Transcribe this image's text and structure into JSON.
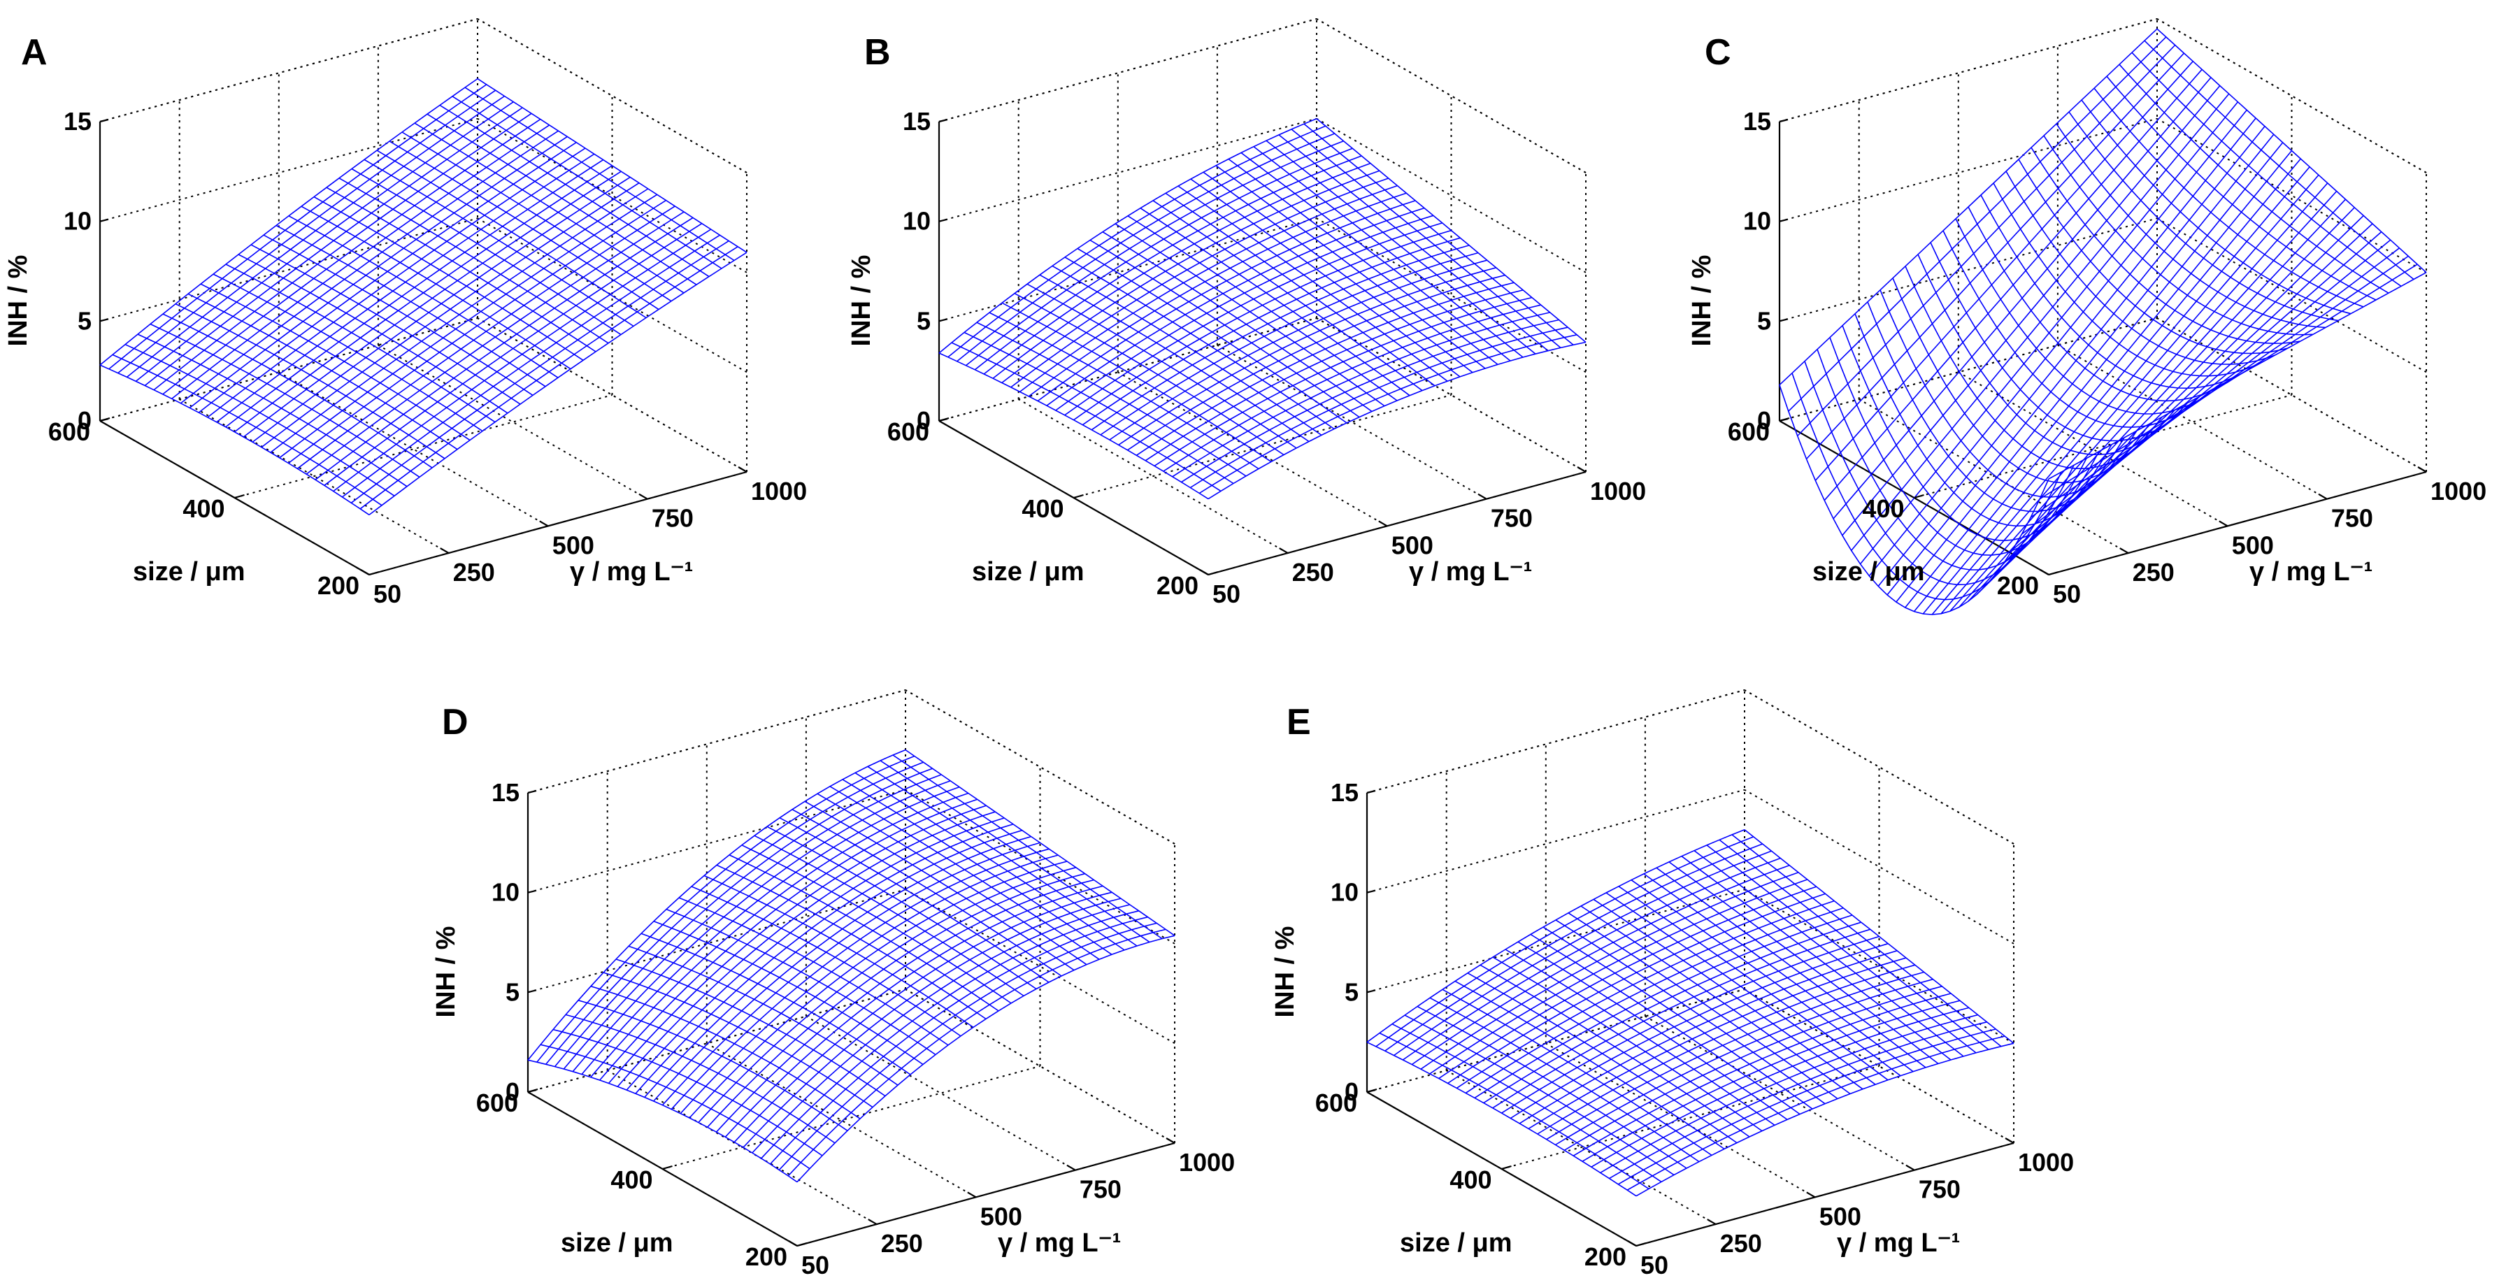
{
  "figure": {
    "background": "#ffffff",
    "mesh_color": "#0000ff"
  },
  "chart_data": [
    {
      "type": "surface",
      "panel": "A",
      "xlabel": "γ / mg L⁻¹",
      "ylabel": "size / μm",
      "zlabel": "INH / %",
      "x_ticks": [
        50,
        250,
        500,
        750,
        1000
      ],
      "x_tick_labels": [
        "50",
        "250",
        "500",
        "750",
        "1000"
      ],
      "y_ticks": [
        200,
        400,
        600
      ],
      "y_tick_labels": [
        "200",
        "400",
        "600"
      ],
      "z_ticks": [
        0,
        5,
        10,
        15
      ],
      "z_tick_labels": [
        "0",
        "5",
        "10",
        "15"
      ],
      "xlim": [
        50,
        1000
      ],
      "ylim": [
        200,
        600
      ],
      "zlim": [
        0,
        15
      ],
      "grid": true,
      "corner_values": {
        "x50_y200": 3.0,
        "x50_y600": 2.8,
        "x1000_y200": 11.0,
        "x1000_y600": 12.0
      },
      "surface_function": {
        "z00": 3.0,
        "z10": 11.0,
        "z01": 2.8,
        "z11": 12.0,
        "cx": 0.3,
        "cy": 0.4
      }
    },
    {
      "type": "surface",
      "panel": "B",
      "xlabel": "γ / mg L⁻¹",
      "ylabel": "size / μm",
      "zlabel": "INH / %",
      "x_ticks": [
        50,
        250,
        500,
        750,
        1000
      ],
      "x_tick_labels": [
        "50",
        "250",
        "500",
        "750",
        "1000"
      ],
      "y_ticks": [
        200,
        400,
        600
      ],
      "y_tick_labels": [
        "200",
        "400",
        "600"
      ],
      "z_ticks": [
        0,
        5,
        10,
        15
      ],
      "z_tick_labels": [
        "0",
        "5",
        "10",
        "15"
      ],
      "xlim": [
        50,
        1000
      ],
      "ylim": [
        200,
        600
      ],
      "zlim": [
        0,
        15
      ],
      "grid": true,
      "corner_values": {
        "x50_y200": 3.8,
        "x50_y600": 3.4,
        "x1000_y200": 6.5,
        "x1000_y600": 10.0
      },
      "surface_function": {
        "z00": 3.8,
        "z10": 6.5,
        "z01": 3.4,
        "z11": 10.0,
        "cx": 1.0,
        "cy": 0.3
      }
    },
    {
      "type": "surface",
      "panel": "C",
      "xlabel": "γ / mg L⁻¹",
      "ylabel": "size / μm",
      "zlabel": "INH / %",
      "x_ticks": [
        50,
        250,
        500,
        750,
        1000
      ],
      "x_tick_labels": [
        "50",
        "250",
        "500",
        "750",
        "1000"
      ],
      "y_ticks": [
        200,
        400,
        600
      ],
      "y_tick_labels": [
        "200",
        "400",
        "600"
      ],
      "z_ticks": [
        0,
        5,
        10,
        15
      ],
      "z_tick_labels": [
        "0",
        "5",
        "10",
        "15"
      ],
      "xlim": [
        50,
        1000
      ],
      "ylim": [
        200,
        600
      ],
      "zlim": [
        0,
        15
      ],
      "grid": true,
      "corner_values": {
        "x50_y200": 4.8,
        "x50_y600": 1.8,
        "x1000_y200": 10.0,
        "x1000_y600": 14.5
      },
      "surface_function": {
        "z00": 4.8,
        "z10": 10.0,
        "z01": 1.8,
        "z11": 14.5,
        "cx": 0.0,
        "cy": -9.0
      }
    },
    {
      "type": "surface",
      "panel": "D",
      "xlabel": "γ / mg L⁻¹",
      "ylabel": "size / μm",
      "zlabel": "INH / %",
      "x_ticks": [
        50,
        250,
        500,
        750,
        1000
      ],
      "x_tick_labels": [
        "50",
        "250",
        "500",
        "750",
        "1000"
      ],
      "y_ticks": [
        200,
        400,
        600
      ],
      "y_tick_labels": [
        "200",
        "400",
        "600"
      ],
      "z_ticks": [
        0,
        5,
        10,
        15
      ],
      "z_tick_labels": [
        "0",
        "5",
        "10",
        "15"
      ],
      "xlim": [
        50,
        1000
      ],
      "ylim": [
        200,
        600
      ],
      "zlim": [
        0,
        15
      ],
      "grid": true,
      "corner_values": {
        "x50_y200": 3.2,
        "x50_y600": 1.6,
        "x1000_y200": 10.4,
        "x1000_y600": 12.0
      },
      "surface_function": {
        "z00": 3.2,
        "z10": 10.4,
        "z01": 1.6,
        "z11": 12.0,
        "cx": 2.0,
        "cy": 0.8
      }
    },
    {
      "type": "surface",
      "panel": "E",
      "xlabel": "γ / mg L⁻¹",
      "ylabel": "size / μm",
      "zlabel": "INH / %",
      "x_ticks": [
        50,
        250,
        500,
        750,
        1000
      ],
      "x_tick_labels": [
        "50",
        "250",
        "500",
        "750",
        "1000"
      ],
      "y_ticks": [
        200,
        400,
        600
      ],
      "y_tick_labels": [
        "200",
        "400",
        "600"
      ],
      "z_ticks": [
        0,
        5,
        10,
        15
      ],
      "z_tick_labels": [
        "0",
        "5",
        "10",
        "15"
      ],
      "xlim": [
        50,
        1000
      ],
      "ylim": [
        200,
        600
      ],
      "zlim": [
        0,
        15
      ],
      "grid": true,
      "corner_values": {
        "x50_y200": 2.5,
        "x50_y600": 2.5,
        "x1000_y200": 5.0,
        "x1000_y600": 8.0
      },
      "surface_function": {
        "z00": 2.5,
        "z10": 5.0,
        "z01": 2.5,
        "z11": 8.0,
        "cx": 0.8,
        "cy": 0.3
      }
    }
  ]
}
